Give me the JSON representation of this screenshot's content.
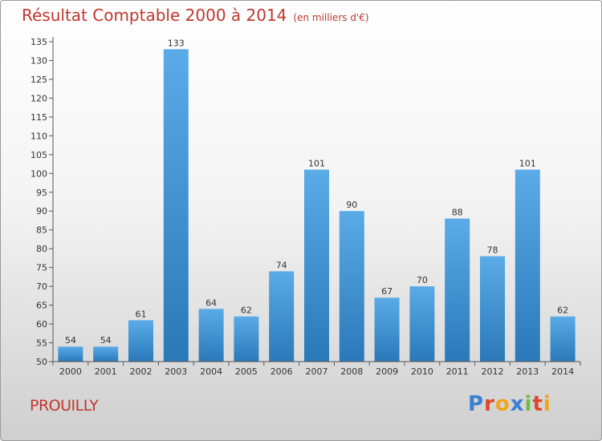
{
  "header": {
    "title": "Résultat Comptable 2000 à 2014",
    "subtitle": "(en milliers d'€)"
  },
  "footer": {
    "place": "PROUILLY",
    "logo": {
      "letters": [
        "P",
        "r",
        "o",
        "x",
        "i",
        "t",
        "i"
      ],
      "colors": [
        "#3a7fd0",
        "#e0472a",
        "#f2a51a",
        "#3a7fd0",
        "#6cbd45",
        "#e0472a",
        "#f2a51a"
      ]
    }
  },
  "chart_data": {
    "type": "bar",
    "title": "Résultat Comptable 2000 à 2014",
    "unit": "(en milliers d'€)",
    "xlabel": "",
    "ylabel": "",
    "categories": [
      "2000",
      "2001",
      "2002",
      "2003",
      "2004",
      "2005",
      "2006",
      "2007",
      "2008",
      "2009",
      "2010",
      "2011",
      "2012",
      "2013",
      "2014"
    ],
    "values": [
      54,
      54,
      61,
      133,
      64,
      62,
      74,
      101,
      90,
      67,
      70,
      88,
      78,
      101,
      62
    ],
    "ylim": [
      50,
      135
    ],
    "yticks": [
      50,
      55,
      60,
      65,
      70,
      75,
      80,
      85,
      90,
      95,
      100,
      105,
      110,
      115,
      120,
      125,
      130,
      135
    ],
    "grid": false,
    "colors": {
      "bar_top": "#5aabe8",
      "bar_bottom": "#2a78b8",
      "axis": "#555555"
    }
  }
}
